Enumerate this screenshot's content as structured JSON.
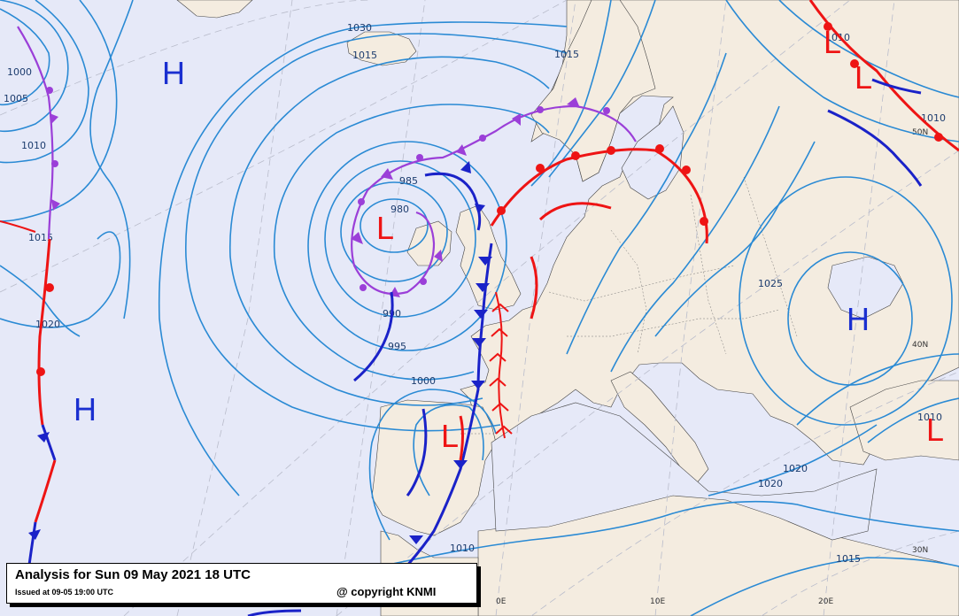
{
  "title": {
    "main": "Analysis for Sun 09 May 2021 18 UTC",
    "issued": "Issued at 09-05 19:00 UTC",
    "copyright": "@ copyright KNMI"
  },
  "centers": [
    {
      "type": "H",
      "label": "H"
    },
    {
      "type": "H",
      "label": "H"
    },
    {
      "type": "H",
      "label": "H"
    },
    {
      "type": "L",
      "label": "L"
    },
    {
      "type": "L",
      "label": "L"
    },
    {
      "type": "L",
      "label": "L"
    },
    {
      "type": "L",
      "label": "L"
    },
    {
      "type": "L",
      "label": "L"
    }
  ],
  "isobar_labels": [
    "1030",
    "1015",
    "1015",
    "1000",
    "1005",
    "1010",
    "1015",
    "1020",
    "985",
    "980",
    "990",
    "995",
    "1000",
    "1010",
    "1025",
    "1020",
    "1020",
    "1015",
    "1010",
    "1010",
    "1010"
  ],
  "graticule_labels": [
    "0E",
    "10E",
    "20E",
    "30N",
    "40N",
    "50N"
  ],
  "colors": {
    "isobar": "#2a8ad4",
    "cold_front": "#1a22c8",
    "warm_front": "#ee1414",
    "occluded_front": "#9b3fd8",
    "high": "#1a2fd0",
    "low": "#ee1414",
    "sea": "#e6e9f8",
    "land": "#f4ece0"
  }
}
